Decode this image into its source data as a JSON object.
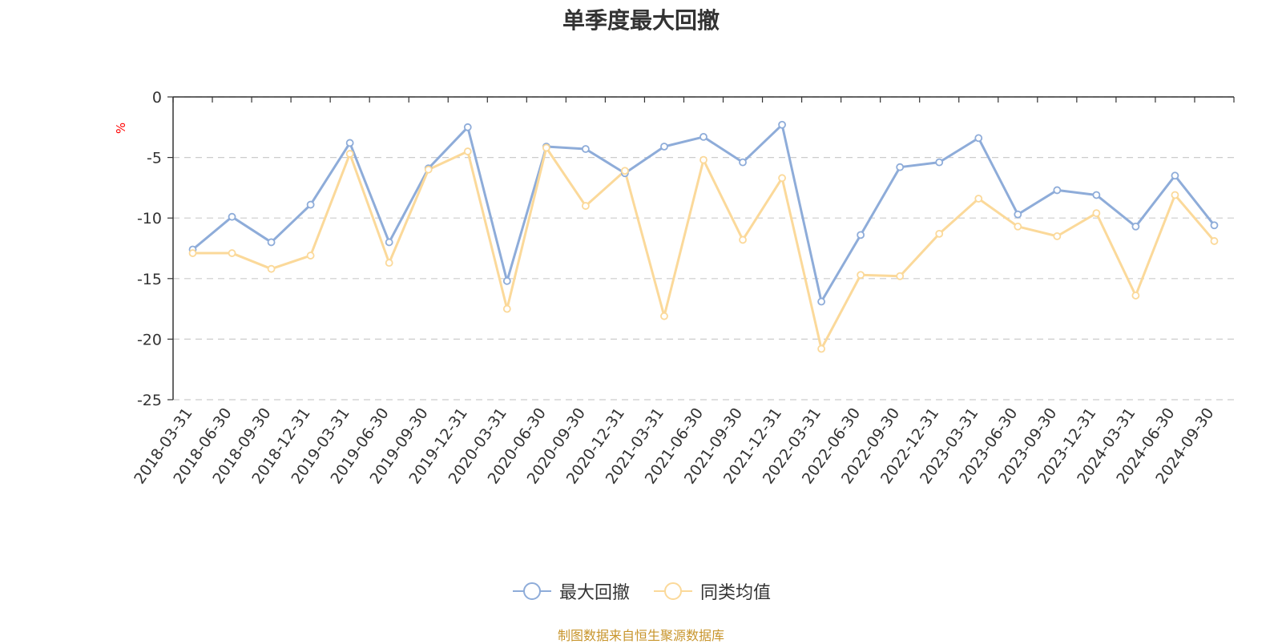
{
  "chart_data": {
    "type": "line",
    "title": "单季度最大回撤",
    "ylabel": "%",
    "xlabel": "",
    "ylim": [
      -25,
      0
    ],
    "yticks": [
      0,
      -5,
      -10,
      -15,
      -20,
      -25
    ],
    "grid": true,
    "legend_position": "bottom",
    "categories": [
      "2018-03-31",
      "2018-06-30",
      "2018-09-30",
      "2018-12-31",
      "2019-03-31",
      "2019-06-30",
      "2019-09-30",
      "2019-12-31",
      "2020-03-31",
      "2020-06-30",
      "2020-09-30",
      "2020-12-31",
      "2021-03-31",
      "2021-06-30",
      "2021-09-30",
      "2021-12-31",
      "2022-03-31",
      "2022-06-30",
      "2022-09-30",
      "2022-12-31",
      "2023-03-31",
      "2023-06-30",
      "2023-09-30",
      "2023-12-31",
      "2024-03-31",
      "2024-06-30",
      "2024-09-30"
    ],
    "series": [
      {
        "name": "最大回撤",
        "color": "#8eacd9",
        "values": [
          -12.6,
          -9.9,
          -12.0,
          -8.9,
          -3.8,
          -12.0,
          -5.9,
          -2.5,
          -15.2,
          -4.1,
          -4.3,
          -6.3,
          -4.1,
          -3.3,
          -5.4,
          -2.3,
          -16.9,
          -11.4,
          -5.8,
          -5.4,
          -3.4,
          -9.7,
          -7.7,
          -8.1,
          -10.7,
          -6.5,
          -10.6
        ]
      },
      {
        "name": "同类均值",
        "color": "#fbd99a",
        "values": [
          -12.9,
          -12.9,
          -14.2,
          -13.1,
          -4.7,
          -13.7,
          -6.0,
          -4.5,
          -17.5,
          -4.2,
          -9.0,
          -6.1,
          -18.1,
          -5.2,
          -11.8,
          -6.7,
          -20.8,
          -14.7,
          -14.8,
          -11.3,
          -8.4,
          -10.7,
          -11.5,
          -9.6,
          -16.4,
          -8.1,
          -11.9
        ]
      }
    ]
  },
  "footer": {
    "source": "制图数据来自恒生聚源数据库"
  }
}
